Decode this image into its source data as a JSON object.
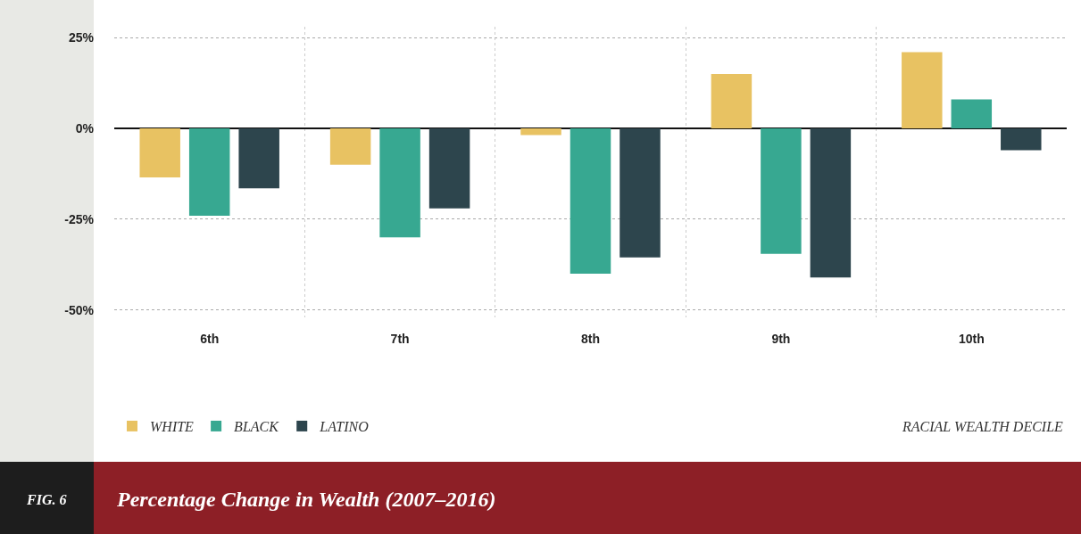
{
  "chart_data": {
    "type": "bar",
    "title": "Percentage Change in Wealth (2007–2016)",
    "annotations": [
      "FIG. 6",
      "RACIAL WEALTH DECILE"
    ],
    "categories": [
      "6th",
      "7th",
      "8th",
      "9th",
      "10th"
    ],
    "series": [
      {
        "name": "WHITE",
        "color": "#e8c262",
        "values": [
          -13.5,
          -10,
          -1.8,
          15,
          21
        ]
      },
      {
        "name": "BLACK",
        "color": "#37a891",
        "values": [
          -24,
          -30,
          -40,
          -34.5,
          8
        ]
      },
      {
        "name": "LATINO",
        "color": "#2d454d",
        "values": [
          -16.5,
          -22,
          -35.5,
          -41,
          -6
        ]
      }
    ],
    "ylim": [
      -52,
      28
    ],
    "yticks": [
      {
        "value": 25,
        "label": "25%"
      },
      {
        "value": 0,
        "label": "0%"
      },
      {
        "value": -25,
        "label": "-25%"
      },
      {
        "value": -50,
        "label": "-50%"
      }
    ],
    "grid": true,
    "legend": "bottom left"
  }
}
